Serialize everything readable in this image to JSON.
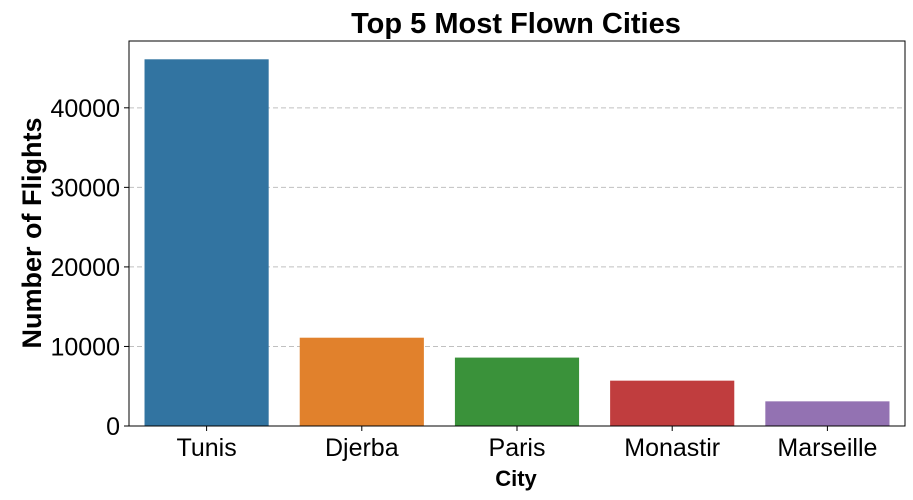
{
  "chart_data": {
    "type": "bar",
    "title": "Top 5 Most Flown Cities",
    "xlabel": "City",
    "ylabel": "Number of Flights",
    "categories": [
      "Tunis",
      "Djerba",
      "Paris",
      "Monastir",
      "Marseille"
    ],
    "values": [
      46100,
      11100,
      8600,
      5700,
      3100
    ],
    "colors": [
      "#3274a1",
      "#e1812c",
      "#3a923a",
      "#c03d3e",
      "#9372b2"
    ],
    "ylim": [
      0,
      48400
    ],
    "yticks": [
      0,
      10000,
      20000,
      30000,
      40000
    ],
    "ytick_labels": [
      "0",
      "10000",
      "20000",
      "30000",
      "40000"
    ],
    "grid": "y-dashed",
    "legend": "none"
  }
}
